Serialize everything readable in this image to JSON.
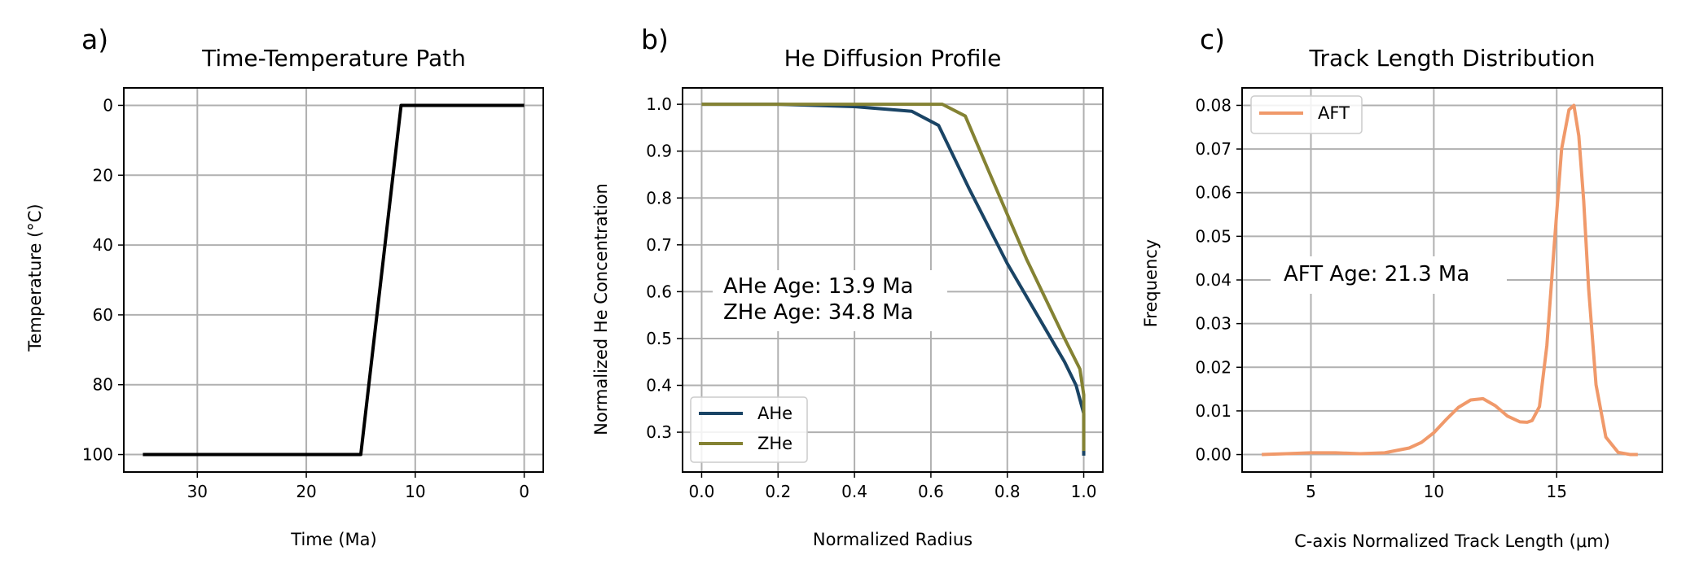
{
  "page_colors": {
    "grid": "#b0b0b0",
    "frame": "#000000",
    "background": "#ffffff"
  },
  "chart_data": [
    {
      "panel_label": "a)",
      "type": "line",
      "title": "Time-Temperature Path",
      "xlabel": "Time (Ma)",
      "ylabel": "Temperature (°C)",
      "xlim": [
        36.75,
        -1.75
      ],
      "ylim": [
        105,
        -5
      ],
      "x_inverted": true,
      "y_inverted": true,
      "xticks": [
        30,
        20,
        10,
        0
      ],
      "xtick_labels": [
        "30",
        "20",
        "10",
        "0"
      ],
      "yticks": [
        0,
        20,
        40,
        60,
        80,
        100
      ],
      "ytick_labels": [
        "0",
        "20",
        "40",
        "60",
        "80",
        "100"
      ],
      "grid": true,
      "legend": null,
      "series": [
        {
          "color": "#000000",
          "x": [
            35,
            15,
            11.3,
            0
          ],
          "y": [
            100,
            100,
            0,
            0
          ]
        }
      ],
      "annotations": []
    },
    {
      "panel_label": "b)",
      "type": "line",
      "title": "He Diffusion Profile",
      "xlabel": "Normalized Radius",
      "ylabel": "Normalized He Concentration",
      "xlim": [
        -0.05,
        1.05
      ],
      "ylim": [
        0.215,
        1.035
      ],
      "xticks": [
        0.0,
        0.2,
        0.4,
        0.6,
        0.8,
        1.0
      ],
      "xtick_labels": [
        "0.0",
        "0.2",
        "0.4",
        "0.6",
        "0.8",
        "1.0"
      ],
      "yticks": [
        0.3,
        0.4,
        0.5,
        0.6,
        0.7,
        0.8,
        0.9,
        1.0
      ],
      "ytick_labels": [
        "0.3",
        "0.4",
        "0.5",
        "0.6",
        "0.7",
        "0.8",
        "0.9",
        "1.0"
      ],
      "grid": true,
      "legend": "lower-left",
      "series": [
        {
          "name": "AHe",
          "color": "#1a4465",
          "x": [
            0.0,
            0.2,
            0.4,
            0.55,
            0.62,
            0.7,
            0.8,
            0.9,
            0.95,
            0.98,
            0.99,
            1.0,
            1.0
          ],
          "y": [
            1.0,
            1.0,
            0.995,
            0.985,
            0.955,
            0.82,
            0.66,
            0.52,
            0.45,
            0.4,
            0.37,
            0.34,
            0.25
          ]
        },
        {
          "name": "ZHe",
          "color": "#848233",
          "x": [
            0.0,
            0.3,
            0.5,
            0.63,
            0.69,
            0.75,
            0.85,
            0.95,
            0.99,
            1.0,
            1.0
          ],
          "y": [
            1.0,
            1.0,
            1.0,
            1.0,
            0.975,
            0.86,
            0.67,
            0.5,
            0.435,
            0.38,
            0.26
          ]
        }
      ],
      "annotations": [
        "AHe Age: 13.9 Ma",
        "ZHe Age: 34.8 Ma"
      ]
    },
    {
      "panel_label": "c)",
      "type": "line",
      "title": "Track Length Distribution",
      "xlabel": "C-axis Normalized Track Length (μm)",
      "ylabel": "Frequency",
      "xlim": [
        2.2,
        19.3
      ],
      "ylim": [
        -0.004,
        0.084
      ],
      "xticks": [
        5,
        10,
        15
      ],
      "xtick_labels": [
        "5",
        "10",
        "15"
      ],
      "yticks": [
        0.0,
        0.01,
        0.02,
        0.03,
        0.04,
        0.05,
        0.06,
        0.07,
        0.08
      ],
      "ytick_labels": [
        "0.00",
        "0.01",
        "0.02",
        "0.03",
        "0.04",
        "0.05",
        "0.06",
        "0.07",
        "0.08"
      ],
      "grid": true,
      "legend": "upper-left",
      "series": [
        {
          "name": "AFT",
          "color": "#f0996a",
          "x": [
            3,
            4,
            5,
            6,
            7,
            8,
            9,
            9.5,
            10,
            10.5,
            11,
            11.5,
            12,
            12.5,
            13,
            13.5,
            13.8,
            14,
            14.3,
            14.6,
            14.9,
            15.2,
            15.5,
            15.7,
            15.9,
            16.1,
            16.3,
            16.6,
            17,
            17.5,
            18,
            18.3
          ],
          "y": [
            0.0,
            0.0002,
            0.0004,
            0.0004,
            0.0002,
            0.0004,
            0.0015,
            0.0028,
            0.005,
            0.008,
            0.0108,
            0.0125,
            0.0128,
            0.0112,
            0.0088,
            0.0075,
            0.0074,
            0.0078,
            0.011,
            0.025,
            0.048,
            0.07,
            0.079,
            0.08,
            0.073,
            0.058,
            0.038,
            0.016,
            0.004,
            0.0005,
            0.0,
            0.0
          ]
        }
      ],
      "annotations": [
        "AFT Age: 21.3 Ma"
      ]
    }
  ]
}
